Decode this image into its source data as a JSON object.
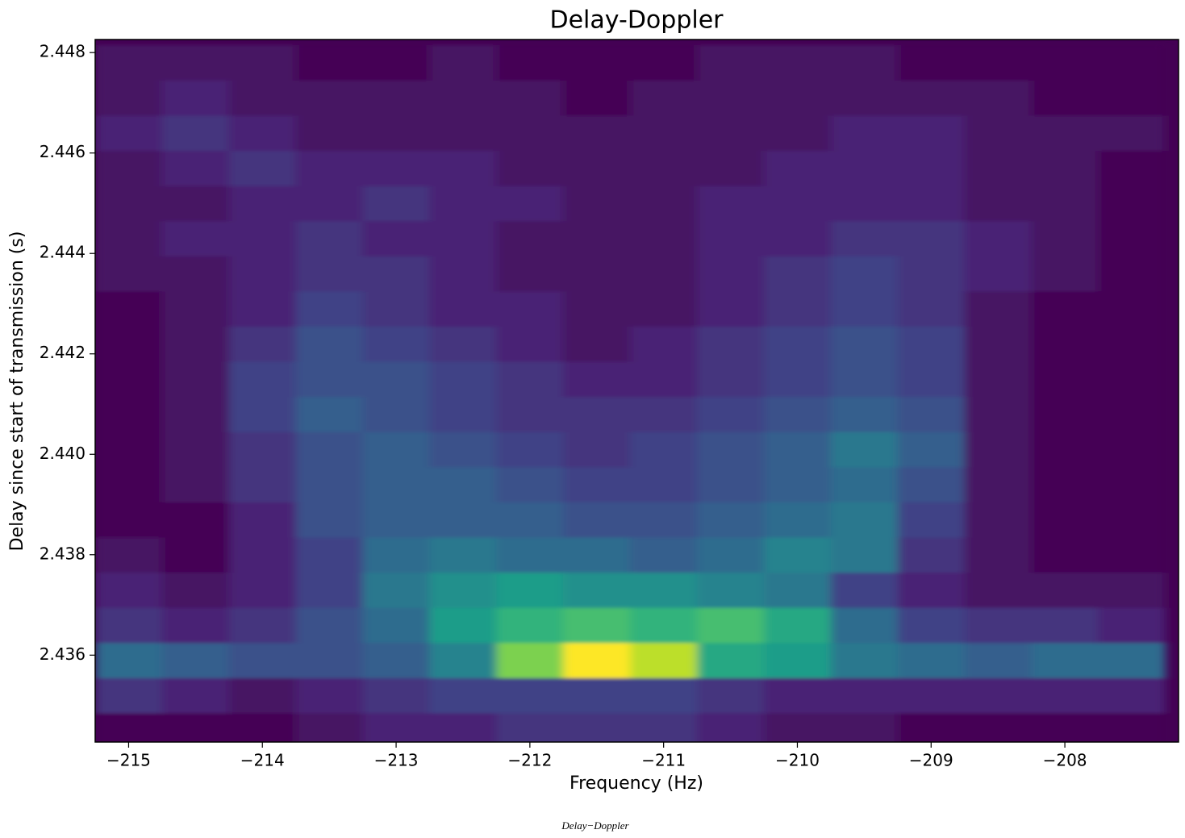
{
  "chart_data": {
    "type": "heatmap",
    "title": "Delay-Doppler",
    "xlabel": "Frequency (Hz)",
    "ylabel": "Delay since start of transmission (s)",
    "caption": "Delay−Doppler",
    "colormap": "viridis",
    "xlim": [
      -215.25,
      -207.15
    ],
    "ylim": [
      2.43427,
      2.44826
    ],
    "xticks": [
      {
        "value": -215,
        "label": "−215"
      },
      {
        "value": -214,
        "label": "−214"
      },
      {
        "value": -213,
        "label": "−213"
      },
      {
        "value": -212,
        "label": "−212"
      },
      {
        "value": -211,
        "label": "−211"
      },
      {
        "value": -210,
        "label": "−210"
      },
      {
        "value": -209,
        "label": "−209"
      },
      {
        "value": -208,
        "label": "−208"
      }
    ],
    "yticks": [
      2.436,
      2.438,
      {
        "value": 2.44,
        "label": "2.440"
      },
      2.442,
      2.444,
      2.446,
      2.448
    ],
    "x": [
      -215,
      -214.5,
      -214,
      -213.5,
      -213,
      -212.5,
      -212,
      -211.5,
      -211,
      -210.5,
      -210,
      -209.5,
      -209,
      -208.5,
      -208,
      -207.5
    ],
    "y": [
      2.4345,
      2.4352,
      2.4359,
      2.4366,
      2.4373,
      2.438,
      2.4387,
      2.4394,
      2.4401,
      2.4408,
      2.4415,
      2.4422,
      2.4429,
      2.4436,
      2.4443,
      2.445,
      2.4457,
      2.4464,
      2.4471,
      2.4478
    ],
    "z": [
      [
        0,
        0,
        0,
        0.05,
        0.1,
        0.1,
        0.15,
        0.15,
        0.15,
        0.1,
        0.05,
        0.05,
        0,
        0,
        0,
        0
      ],
      [
        0.15,
        0.1,
        0.05,
        0.1,
        0.15,
        0.2,
        0.2,
        0.2,
        0.2,
        0.15,
        0.1,
        0.1,
        0.1,
        0.1,
        0.1,
        0.1
      ],
      [
        0.35,
        0.3,
        0.25,
        0.25,
        0.3,
        0.45,
        0.8,
        1,
        0.9,
        0.6,
        0.55,
        0.4,
        0.35,
        0.3,
        0.35,
        0.35
      ],
      [
        0.15,
        0.1,
        0.15,
        0.25,
        0.35,
        0.55,
        0.65,
        0.7,
        0.65,
        0.7,
        0.6,
        0.35,
        0.2,
        0.15,
        0.15,
        0.1
      ],
      [
        0.1,
        0.05,
        0.1,
        0.2,
        0.4,
        0.5,
        0.55,
        0.5,
        0.5,
        0.45,
        0.4,
        0.2,
        0.1,
        0.05,
        0.05,
        0.05
      ],
      [
        0.05,
        0,
        0.1,
        0.2,
        0.35,
        0.4,
        0.35,
        0.35,
        0.3,
        0.35,
        0.45,
        0.4,
        0.15,
        0.05,
        0,
        0
      ],
      [
        0,
        0,
        0.1,
        0.25,
        0.3,
        0.3,
        0.3,
        0.25,
        0.25,
        0.3,
        0.35,
        0.4,
        0.2,
        0.05,
        0,
        0
      ],
      [
        0,
        0.05,
        0.15,
        0.25,
        0.3,
        0.3,
        0.25,
        0.2,
        0.2,
        0.25,
        0.3,
        0.35,
        0.25,
        0.05,
        0,
        0
      ],
      [
        0,
        0.05,
        0.15,
        0.25,
        0.3,
        0.25,
        0.2,
        0.15,
        0.2,
        0.25,
        0.3,
        0.4,
        0.3,
        0.05,
        0,
        0
      ],
      [
        0,
        0.05,
        0.2,
        0.3,
        0.25,
        0.2,
        0.15,
        0.15,
        0.15,
        0.2,
        0.25,
        0.3,
        0.25,
        0.05,
        0,
        0
      ],
      [
        0,
        0.05,
        0.2,
        0.25,
        0.25,
        0.2,
        0.15,
        0.1,
        0.1,
        0.15,
        0.2,
        0.25,
        0.2,
        0.05,
        0,
        0
      ],
      [
        0,
        0.05,
        0.15,
        0.25,
        0.2,
        0.15,
        0.1,
        0.05,
        0.1,
        0.15,
        0.2,
        0.25,
        0.2,
        0.05,
        0,
        0
      ],
      [
        0,
        0.05,
        0.1,
        0.2,
        0.15,
        0.1,
        0.1,
        0.05,
        0.05,
        0.1,
        0.15,
        0.2,
        0.15,
        0.05,
        0,
        0
      ],
      [
        0.05,
        0.05,
        0.1,
        0.15,
        0.15,
        0.1,
        0.05,
        0.05,
        0.05,
        0.1,
        0.15,
        0.2,
        0.15,
        0.1,
        0.05,
        0
      ],
      [
        0.05,
        0.1,
        0.1,
        0.15,
        0.1,
        0.1,
        0.05,
        0.05,
        0.05,
        0.1,
        0.1,
        0.15,
        0.15,
        0.1,
        0.05,
        0
      ],
      [
        0.05,
        0.05,
        0.1,
        0.1,
        0.15,
        0.1,
        0.1,
        0.05,
        0.05,
        0.1,
        0.1,
        0.1,
        0.1,
        0.05,
        0.05,
        0
      ],
      [
        0.05,
        0.1,
        0.15,
        0.1,
        0.1,
        0.1,
        0.05,
        0.05,
        0.05,
        0.05,
        0.1,
        0.1,
        0.1,
        0.05,
        0.05,
        0
      ],
      [
        0.1,
        0.15,
        0.1,
        0.05,
        0.05,
        0.05,
        0.05,
        0.05,
        0.05,
        0.05,
        0.05,
        0.1,
        0.1,
        0.05,
        0.05,
        0.05
      ],
      [
        0.05,
        0.1,
        0.05,
        0.05,
        0.05,
        0.05,
        0.05,
        0,
        0.05,
        0.05,
        0.05,
        0.05,
        0.05,
        0.05,
        0,
        0
      ],
      [
        0.05,
        0.05,
        0.05,
        0,
        0,
        0.05,
        0,
        0,
        0,
        0.05,
        0.05,
        0.05,
        0,
        0,
        0,
        0
      ]
    ]
  }
}
